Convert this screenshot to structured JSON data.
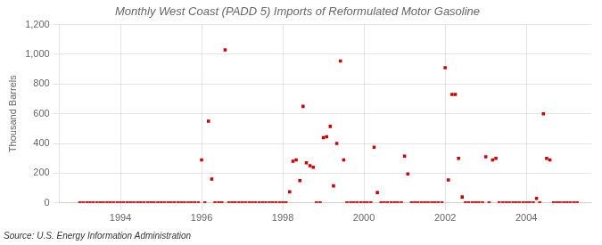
{
  "chart_data": {
    "type": "scatter",
    "title": "Monthly West Coast (PADD 5) Imports of Reformulated Motor Gasoline",
    "ylabel": "Thousand Barrels",
    "annotations": [
      "Source: U.S. Energy Information Administration"
    ],
    "color": "#cc0000",
    "marker": "square",
    "grid": true,
    "xlim": [
      1992.5,
      2005.6
    ],
    "xticks": [
      1994,
      1996,
      1998,
      2000,
      2002,
      2004
    ],
    "ylim": [
      0,
      1200
    ],
    "yticks": [
      0,
      200,
      400,
      600,
      800,
      {
        "value": 1000,
        "label": "1,000"
      },
      {
        "value": 1200,
        "label": "1,200"
      }
    ],
    "x": [
      1993.0,
      1993.08,
      1993.17,
      1993.25,
      1993.33,
      1993.42,
      1993.5,
      1993.58,
      1993.67,
      1993.75,
      1993.83,
      1993.92,
      1994.0,
      1994.08,
      1994.17,
      1994.25,
      1994.33,
      1994.42,
      1994.5,
      1994.58,
      1994.67,
      1994.75,
      1994.83,
      1994.92,
      1995.0,
      1995.08,
      1995.17,
      1995.25,
      1995.33,
      1995.42,
      1995.5,
      1995.58,
      1995.67,
      1995.75,
      1995.83,
      1995.92,
      1996.0,
      1996.08,
      1996.17,
      1996.25,
      1996.33,
      1996.42,
      1996.5,
      1996.58,
      1996.67,
      1996.75,
      1996.83,
      1996.92,
      1997.0,
      1997.08,
      1997.17,
      1997.25,
      1997.33,
      1997.42,
      1997.5,
      1997.58,
      1997.67,
      1997.75,
      1997.83,
      1997.92,
      1998.0,
      1998.08,
      1998.17,
      1998.25,
      1998.33,
      1998.42,
      1998.5,
      1998.58,
      1998.67,
      1998.75,
      1998.83,
      1998.92,
      1999.0,
      1999.08,
      1999.17,
      1999.25,
      1999.33,
      1999.42,
      1999.5,
      1999.58,
      1999.67,
      1999.75,
      1999.83,
      1999.92,
      2000.0,
      2000.08,
      2000.17,
      2000.25,
      2000.33,
      2000.42,
      2000.5,
      2000.58,
      2000.67,
      2000.75,
      2000.83,
      2000.92,
      2001.0,
      2001.08,
      2001.17,
      2001.25,
      2001.33,
      2001.42,
      2001.5,
      2001.58,
      2001.67,
      2001.75,
      2001.83,
      2001.92,
      2002.0,
      2002.08,
      2002.17,
      2002.25,
      2002.33,
      2002.42,
      2002.5,
      2002.58,
      2002.67,
      2002.75,
      2002.83,
      2002.92,
      2003.0,
      2003.08,
      2003.17,
      2003.25,
      2003.33,
      2003.42,
      2003.5,
      2003.58,
      2003.67,
      2003.75,
      2003.83,
      2003.92,
      2004.0,
      2004.08,
      2004.17,
      2004.25,
      2004.33,
      2004.42,
      2004.5,
      2004.58,
      2004.67,
      2004.75,
      2004.83,
      2004.92,
      2005.0,
      2005.08,
      2005.17,
      2005.25
    ],
    "values": [
      0,
      0,
      0,
      0,
      0,
      0,
      0,
      0,
      0,
      0,
      0,
      0,
      0,
      0,
      0,
      0,
      0,
      0,
      0,
      0,
      0,
      0,
      0,
      0,
      0,
      0,
      0,
      0,
      0,
      0,
      0,
      0,
      0,
      0,
      0,
      0,
      290,
      0,
      550,
      160,
      0,
      0,
      0,
      1030,
      0,
      0,
      0,
      0,
      0,
      0,
      0,
      0,
      0,
      0,
      0,
      0,
      0,
      0,
      0,
      0,
      0,
      0,
      75,
      280,
      290,
      150,
      650,
      270,
      250,
      240,
      0,
      0,
      440,
      445,
      515,
      115,
      400,
      955,
      290,
      0,
      0,
      0,
      0,
      0,
      0,
      0,
      0,
      375,
      70,
      0,
      0,
      0,
      0,
      0,
      0,
      0,
      315,
      195,
      0,
      0,
      0,
      0,
      0,
      0,
      0,
      0,
      0,
      0,
      910,
      155,
      730,
      730,
      300,
      40,
      0,
      0,
      0,
      0,
      0,
      0,
      310,
      0,
      290,
      300,
      0,
      0,
      0,
      0,
      0,
      0,
      0,
      0,
      0,
      0,
      0,
      30,
      0,
      600,
      300,
      290,
      0,
      0,
      0,
      0,
      0,
      0,
      0,
      0
    ]
  }
}
